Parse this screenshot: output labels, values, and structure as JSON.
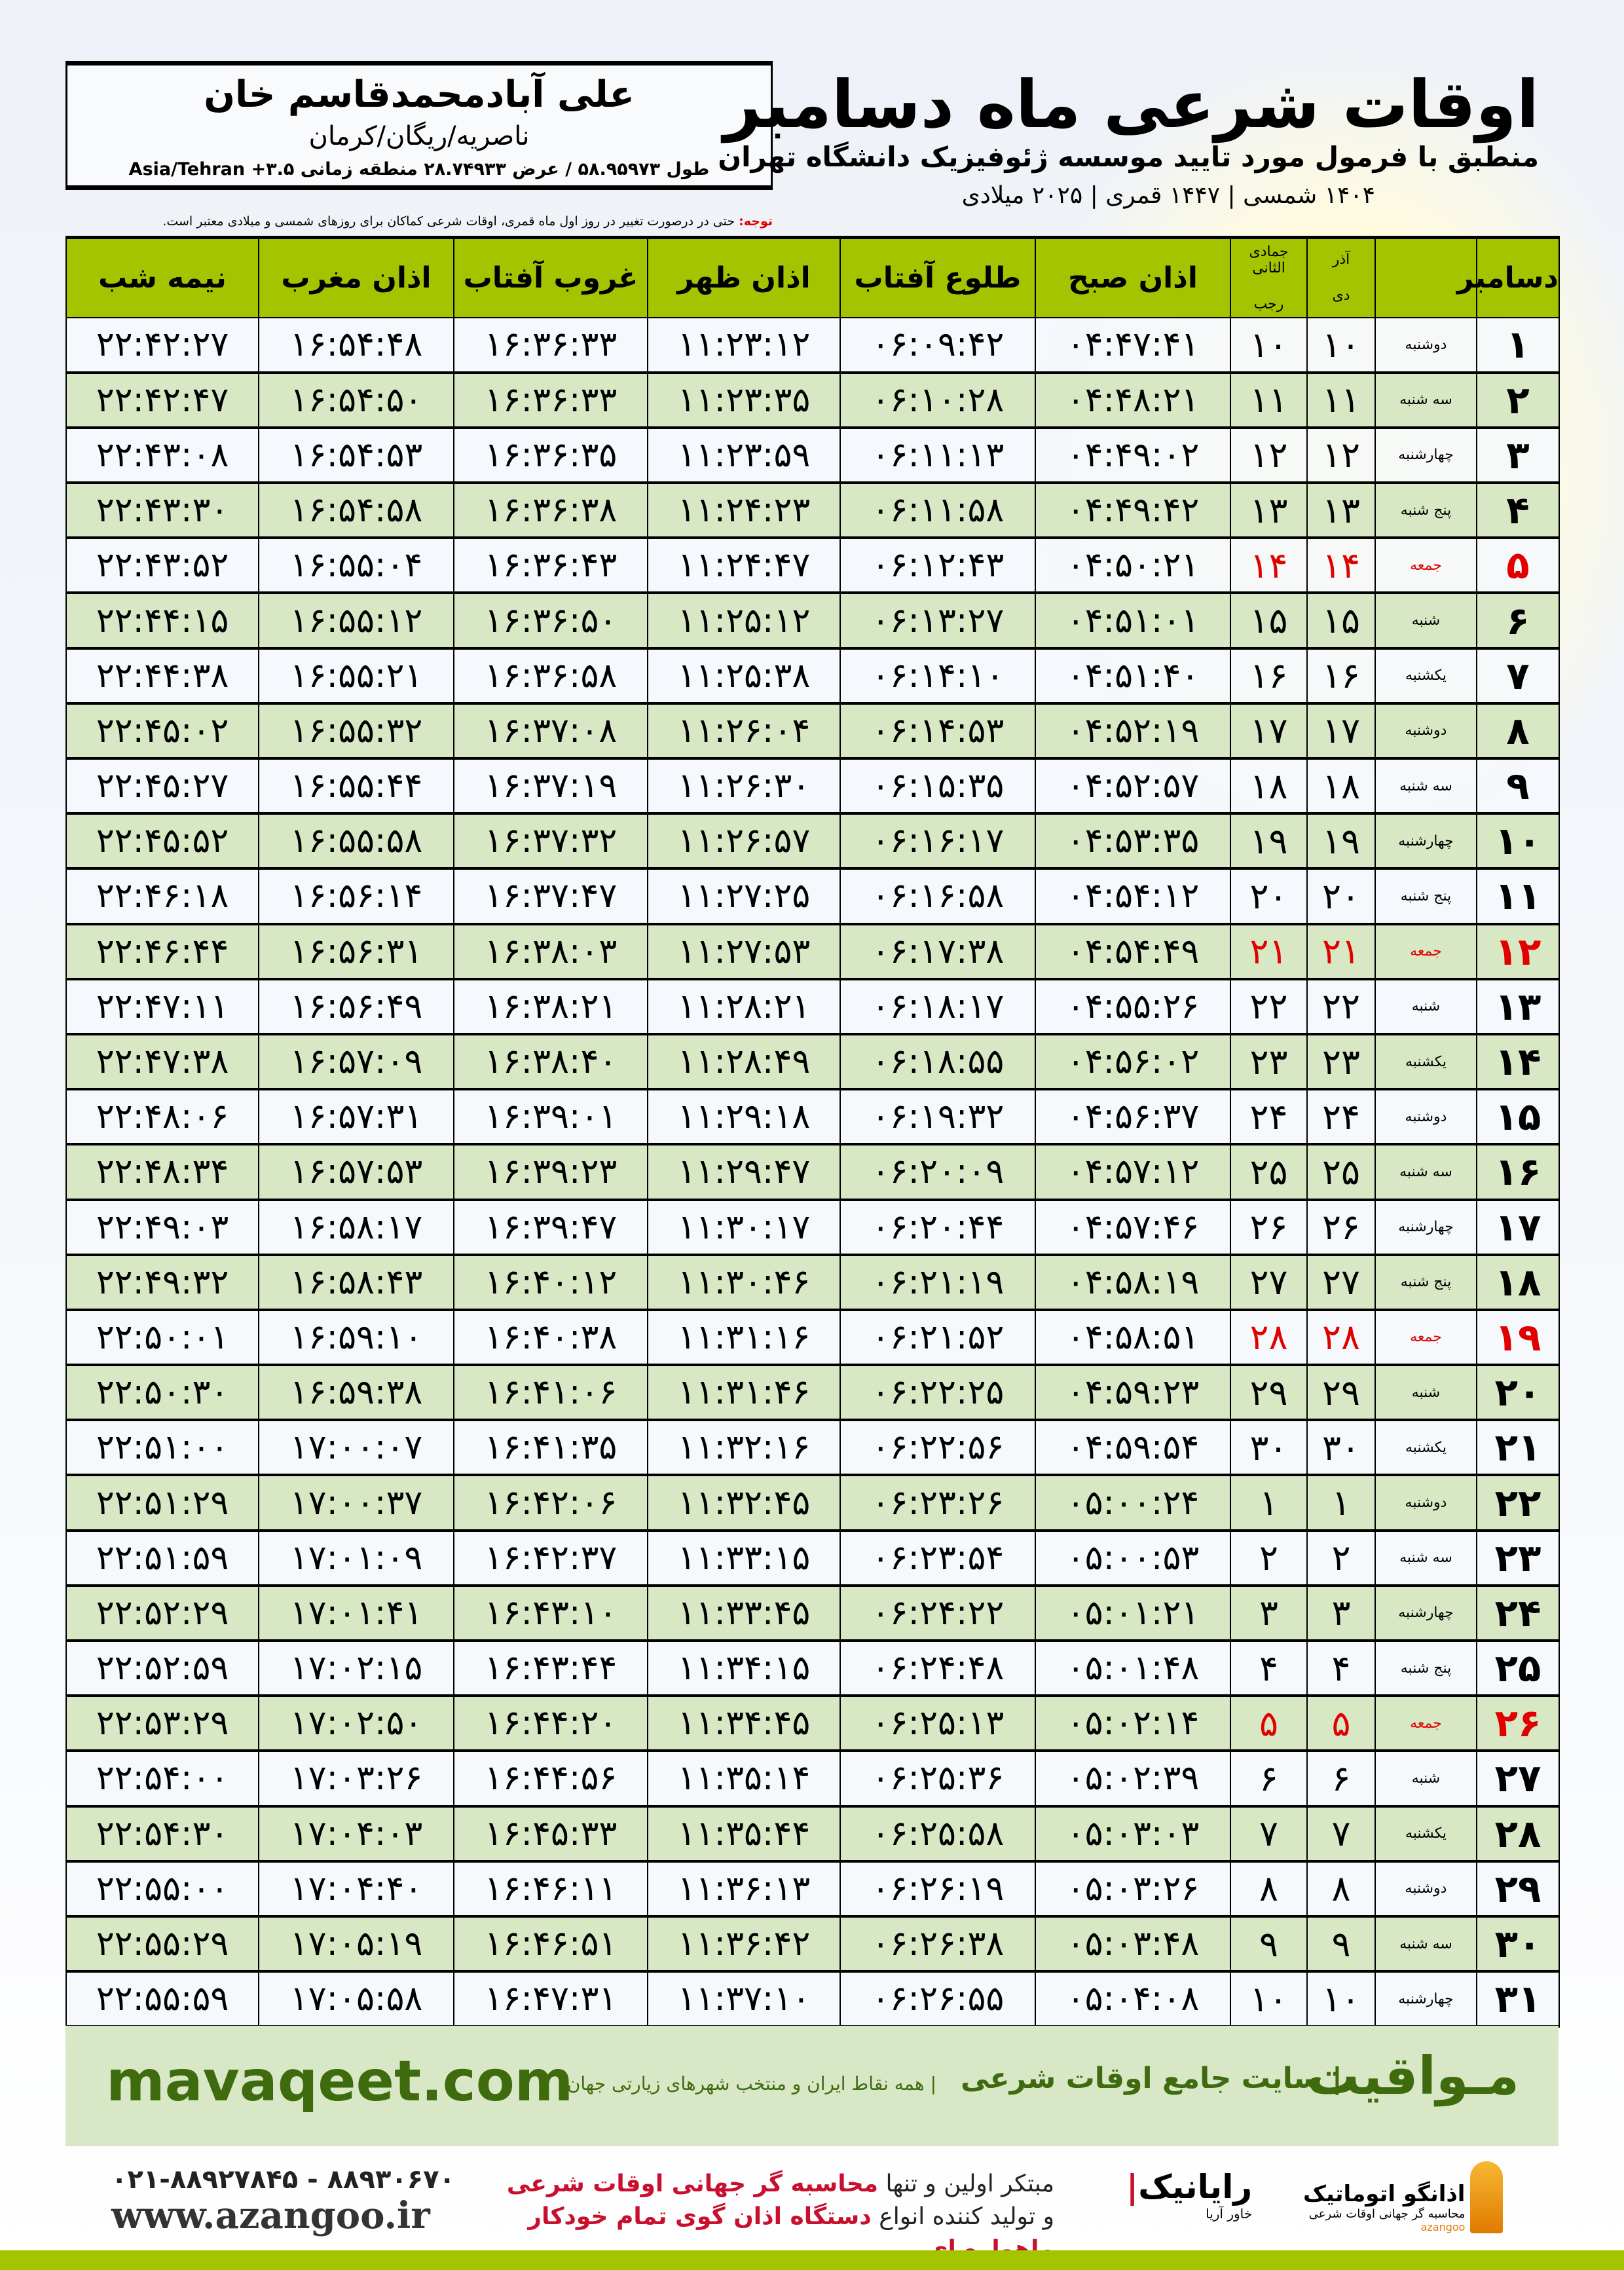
{
  "location": {
    "name": "علی آبادمحمدقاسم خان",
    "region": "ناصریه/ریگان/کرمان",
    "coords": "طول ۵۸.۹۵۹۷۳ / عرض ۲۸.۷۴۹۳۳ منطقه زمانی ۳.۵+ Asia/Tehran"
  },
  "header": {
    "title": "اوقات شرعی ماه دسامبر",
    "subtitle": "منطبق با فرمول مورد تایید موسسه ژئوفیزیک دانشگاه تهران",
    "years": "۱۴۰۴ شمسی | ۱۴۴۷ قمری | ۲۰۲۵ میلادی"
  },
  "note": {
    "label": "توجه:",
    "text": " حتی در درصورت تغییر در روز اول ماه قمری، اوقات شرعی کماکان برای روزهای شمسی و میلادی معتبر است."
  },
  "columns": {
    "month": "دسامبر",
    "shamsi_prev": "آذر",
    "shamsi": "دی",
    "hijri_prev": "جمادی الثانی",
    "hijri": "رجب",
    "fajr": "اذان صبح",
    "sunrise": "طلوع آفتاب",
    "dhuhr": "اذان ظهر",
    "sunset": "غروب آفتاب",
    "maghrib": "اذان مغرب",
    "midnight": "نیمه شب"
  },
  "friday_color": "#e00000",
  "header_color": "#a4c400",
  "rows": [
    [
      "۱",
      "دوشنبه",
      "۱۰",
      "۱۰",
      "۰۴:۴۷:۴۱",
      "۰۶:۰۹:۴۲",
      "۱۱:۲۳:۱۲",
      "۱۶:۳۶:۳۳",
      "۱۶:۵۴:۴۸",
      "۲۲:۴۲:۲۷"
    ],
    [
      "۲",
      "سه شنبه",
      "۱۱",
      "۱۱",
      "۰۴:۴۸:۲۱",
      "۰۶:۱۰:۲۸",
      "۱۱:۲۳:۳۵",
      "۱۶:۳۶:۳۳",
      "۱۶:۵۴:۵۰",
      "۲۲:۴۲:۴۷"
    ],
    [
      "۳",
      "چهارشنبه",
      "۱۲",
      "۱۲",
      "۰۴:۴۹:۰۲",
      "۰۶:۱۱:۱۳",
      "۱۱:۲۳:۵۹",
      "۱۶:۳۶:۳۵",
      "۱۶:۵۴:۵۳",
      "۲۲:۴۳:۰۸"
    ],
    [
      "۴",
      "پنج شنبه",
      "۱۳",
      "۱۳",
      "۰۴:۴۹:۴۲",
      "۰۶:۱۱:۵۸",
      "۱۱:۲۴:۲۳",
      "۱۶:۳۶:۳۸",
      "۱۶:۵۴:۵۸",
      "۲۲:۴۳:۳۰"
    ],
    [
      "۵",
      "جمعه",
      "۱۴",
      "۱۴",
      "۰۴:۵۰:۲۱",
      "۰۶:۱۲:۴۳",
      "۱۱:۲۴:۴۷",
      "۱۶:۳۶:۴۳",
      "۱۶:۵۵:۰۴",
      "۲۲:۴۳:۵۲"
    ],
    [
      "۶",
      "شنبه",
      "۱۵",
      "۱۵",
      "۰۴:۵۱:۰۱",
      "۰۶:۱۳:۲۷",
      "۱۱:۲۵:۱۲",
      "۱۶:۳۶:۵۰",
      "۱۶:۵۵:۱۲",
      "۲۲:۴۴:۱۵"
    ],
    [
      "۷",
      "یکشنبه",
      "۱۶",
      "۱۶",
      "۰۴:۵۱:۴۰",
      "۰۶:۱۴:۱۰",
      "۱۱:۲۵:۳۸",
      "۱۶:۳۶:۵۸",
      "۱۶:۵۵:۲۱",
      "۲۲:۴۴:۳۸"
    ],
    [
      "۸",
      "دوشنبه",
      "۱۷",
      "۱۷",
      "۰۴:۵۲:۱۹",
      "۰۶:۱۴:۵۳",
      "۱۱:۲۶:۰۴",
      "۱۶:۳۷:۰۸",
      "۱۶:۵۵:۳۲",
      "۲۲:۴۵:۰۲"
    ],
    [
      "۹",
      "سه شنبه",
      "۱۸",
      "۱۸",
      "۰۴:۵۲:۵۷",
      "۰۶:۱۵:۳۵",
      "۱۱:۲۶:۳۰",
      "۱۶:۳۷:۱۹",
      "۱۶:۵۵:۴۴",
      "۲۲:۴۵:۲۷"
    ],
    [
      "۱۰",
      "چهارشنبه",
      "۱۹",
      "۱۹",
      "۰۴:۵۳:۳۵",
      "۰۶:۱۶:۱۷",
      "۱۱:۲۶:۵۷",
      "۱۶:۳۷:۳۲",
      "۱۶:۵۵:۵۸",
      "۲۲:۴۵:۵۲"
    ],
    [
      "۱۱",
      "پنج شنبه",
      "۲۰",
      "۲۰",
      "۰۴:۵۴:۱۲",
      "۰۶:۱۶:۵۸",
      "۱۱:۲۷:۲۵",
      "۱۶:۳۷:۴۷",
      "۱۶:۵۶:۱۴",
      "۲۲:۴۶:۱۸"
    ],
    [
      "۱۲",
      "جمعه",
      "۲۱",
      "۲۱",
      "۰۴:۵۴:۴۹",
      "۰۶:۱۷:۳۸",
      "۱۱:۲۷:۵۳",
      "۱۶:۳۸:۰۳",
      "۱۶:۵۶:۳۱",
      "۲۲:۴۶:۴۴"
    ],
    [
      "۱۳",
      "شنبه",
      "۲۲",
      "۲۲",
      "۰۴:۵۵:۲۶",
      "۰۶:۱۸:۱۷",
      "۱۱:۲۸:۲۱",
      "۱۶:۳۸:۲۱",
      "۱۶:۵۶:۴۹",
      "۲۲:۴۷:۱۱"
    ],
    [
      "۱۴",
      "یکشنبه",
      "۲۳",
      "۲۳",
      "۰۴:۵۶:۰۲",
      "۰۶:۱۸:۵۵",
      "۱۱:۲۸:۴۹",
      "۱۶:۳۸:۴۰",
      "۱۶:۵۷:۰۹",
      "۲۲:۴۷:۳۸"
    ],
    [
      "۱۵",
      "دوشنبه",
      "۲۴",
      "۲۴",
      "۰۴:۵۶:۳۷",
      "۰۶:۱۹:۳۲",
      "۱۱:۲۹:۱۸",
      "۱۶:۳۹:۰۱",
      "۱۶:۵۷:۳۱",
      "۲۲:۴۸:۰۶"
    ],
    [
      "۱۶",
      "سه شنبه",
      "۲۵",
      "۲۵",
      "۰۴:۵۷:۱۲",
      "۰۶:۲۰:۰۹",
      "۱۱:۲۹:۴۷",
      "۱۶:۳۹:۲۳",
      "۱۶:۵۷:۵۳",
      "۲۲:۴۸:۳۴"
    ],
    [
      "۱۷",
      "چهارشنبه",
      "۲۶",
      "۲۶",
      "۰۴:۵۷:۴۶",
      "۰۶:۲۰:۴۴",
      "۱۱:۳۰:۱۷",
      "۱۶:۳۹:۴۷",
      "۱۶:۵۸:۱۷",
      "۲۲:۴۹:۰۳"
    ],
    [
      "۱۸",
      "پنج شنبه",
      "۲۷",
      "۲۷",
      "۰۴:۵۸:۱۹",
      "۰۶:۲۱:۱۹",
      "۱۱:۳۰:۴۶",
      "۱۶:۴۰:۱۲",
      "۱۶:۵۸:۴۳",
      "۲۲:۴۹:۳۲"
    ],
    [
      "۱۹",
      "جمعه",
      "۲۸",
      "۲۸",
      "۰۴:۵۸:۵۱",
      "۰۶:۲۱:۵۲",
      "۱۱:۳۱:۱۶",
      "۱۶:۴۰:۳۸",
      "۱۶:۵۹:۱۰",
      "۲۲:۵۰:۰۱"
    ],
    [
      "۲۰",
      "شنبه",
      "۲۹",
      "۲۹",
      "۰۴:۵۹:۲۳",
      "۰۶:۲۲:۲۵",
      "۱۱:۳۱:۴۶",
      "۱۶:۴۱:۰۶",
      "۱۶:۵۹:۳۸",
      "۲۲:۵۰:۳۰"
    ],
    [
      "۲۱",
      "یکشنبه",
      "۳۰",
      "۳۰",
      "۰۴:۵۹:۵۴",
      "۰۶:۲۲:۵۶",
      "۱۱:۳۲:۱۶",
      "۱۶:۴۱:۳۵",
      "۱۷:۰۰:۰۷",
      "۲۲:۵۱:۰۰"
    ],
    [
      "۲۲",
      "دوشنبه",
      "۱",
      "۱",
      "۰۵:۰۰:۲۴",
      "۰۶:۲۳:۲۶",
      "۱۱:۳۲:۴۵",
      "۱۶:۴۲:۰۶",
      "۱۷:۰۰:۳۷",
      "۲۲:۵۱:۲۹"
    ],
    [
      "۲۳",
      "سه شنبه",
      "۲",
      "۲",
      "۰۵:۰۰:۵۳",
      "۰۶:۲۳:۵۴",
      "۱۱:۳۳:۱۵",
      "۱۶:۴۲:۳۷",
      "۱۷:۰۱:۰۹",
      "۲۲:۵۱:۵۹"
    ],
    [
      "۲۴",
      "چهارشنبه",
      "۳",
      "۳",
      "۰۵:۰۱:۲۱",
      "۰۶:۲۴:۲۲",
      "۱۱:۳۳:۴۵",
      "۱۶:۴۳:۱۰",
      "۱۷:۰۱:۴۱",
      "۲۲:۵۲:۲۹"
    ],
    [
      "۲۵",
      "پنج شنبه",
      "۴",
      "۴",
      "۰۵:۰۱:۴۸",
      "۰۶:۲۴:۴۸",
      "۱۱:۳۴:۱۵",
      "۱۶:۴۳:۴۴",
      "۱۷:۰۲:۱۵",
      "۲۲:۵۲:۵۹"
    ],
    [
      "۲۶",
      "جمعه",
      "۵",
      "۵",
      "۰۵:۰۲:۱۴",
      "۰۶:۲۵:۱۳",
      "۱۱:۳۴:۴۵",
      "۱۶:۴۴:۲۰",
      "۱۷:۰۲:۵۰",
      "۲۲:۵۳:۲۹"
    ],
    [
      "۲۷",
      "شنبه",
      "۶",
      "۶",
      "۰۵:۰۲:۳۹",
      "۰۶:۲۵:۳۶",
      "۱۱:۳۵:۱۴",
      "۱۶:۴۴:۵۶",
      "۱۷:۰۳:۲۶",
      "۲۲:۵۴:۰۰"
    ],
    [
      "۲۸",
      "یکشنبه",
      "۷",
      "۷",
      "۰۵:۰۳:۰۳",
      "۰۶:۲۵:۵۸",
      "۱۱:۳۵:۴۴",
      "۱۶:۴۵:۳۳",
      "۱۷:۰۴:۰۳",
      "۲۲:۵۴:۳۰"
    ],
    [
      "۲۹",
      "دوشنبه",
      "۸",
      "۸",
      "۰۵:۰۳:۲۶",
      "۰۶:۲۶:۱۹",
      "۱۱:۳۶:۱۳",
      "۱۶:۴۶:۱۱",
      "۱۷:۰۴:۴۰",
      "۲۲:۵۵:۰۰"
    ],
    [
      "۳۰",
      "سه شنبه",
      "۹",
      "۹",
      "۰۵:۰۳:۴۸",
      "۰۶:۲۶:۳۸",
      "۱۱:۳۶:۴۲",
      "۱۶:۴۶:۵۱",
      "۱۷:۰۵:۱۹",
      "۲۲:۵۵:۲۹"
    ],
    [
      "۳۱",
      "چهارشنبه",
      "۱۰",
      "۱۰",
      "۰۵:۰۴:۰۸",
      "۰۶:۲۶:۵۵",
      "۱۱:۳۷:۱۰",
      "۱۶:۴۷:۳۱",
      "۱۷:۰۵:۵۸",
      "۲۲:۵۵:۵۹"
    ]
  ],
  "promo": {
    "url": "mavaqeet.com",
    "brand": "مـواقیت",
    "desc": "| سایت جامع اوقات شرعی",
    "desc2": "| همه نقاط ایران و منتخب شهرهای زیارتی جهان"
  },
  "contact": {
    "phone": "۰۲۱-۸۸۹۲۷۸۴۵ - ۸۸۹۳۰۶۷۰",
    "web": "www.azangoo.ir",
    "slogan_1a": "مبتکر اولین و تنها ",
    "slogan_1b": "محاسبه گر جهانی اوقات شرعی",
    "slogan_2a": "و تولید کننده انواع ",
    "slogan_2b": "دستگاه اذان گوی تمام خودکار ماهواره ای"
  },
  "logos": {
    "rayanik": "رایانیک",
    "rayanik_sub": "خاور آریا",
    "azangoo": "اذانگو اتوماتیک",
    "azangoo_sub": "محاسبه گر جهانی اوقات شرعی",
    "azangoo_en": "azangoo"
  }
}
